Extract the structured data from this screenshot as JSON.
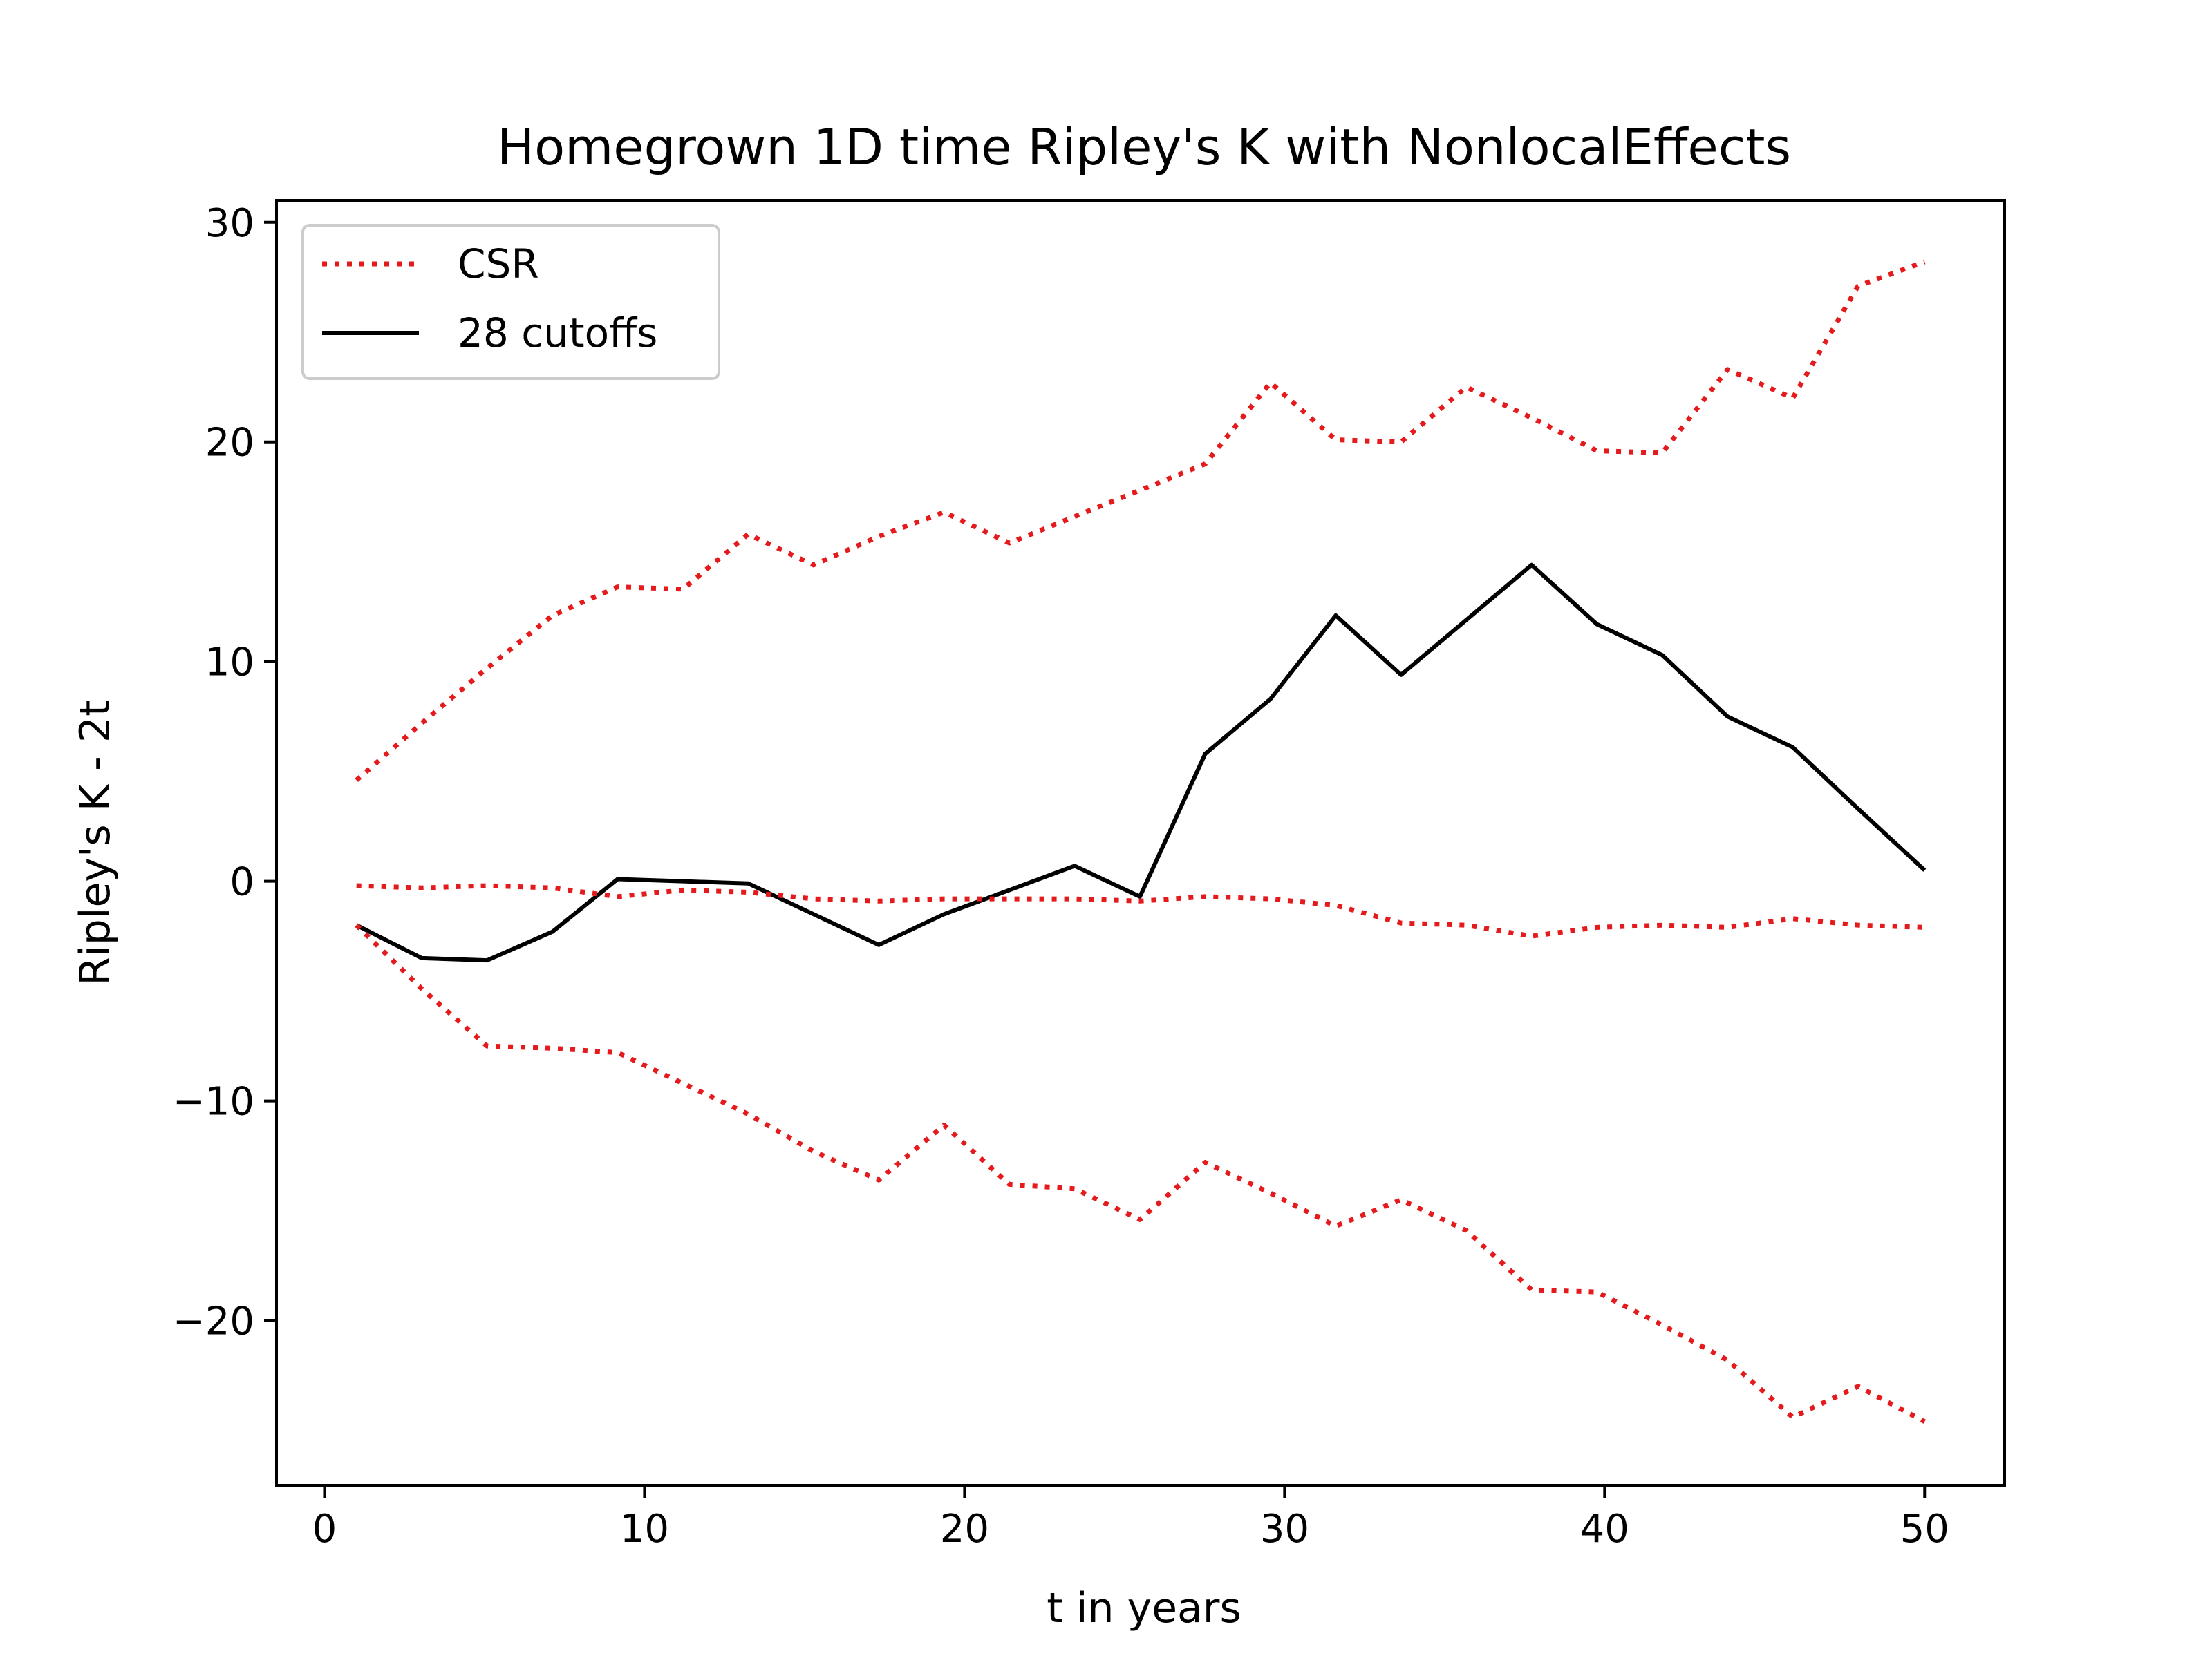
{
  "chart_data": {
    "type": "line",
    "title": "Homegrown 1D time Ripley's K with NonlocalEffects",
    "xlabel": "t in years",
    "ylabel": "Ripley's K - 2t",
    "xlim": [
      -1.5,
      52.5
    ],
    "ylim": [
      -27.5,
      31
    ],
    "xticks": [
      0,
      10,
      20,
      30,
      40,
      50
    ],
    "xtick_labels": [
      "0",
      "10",
      "20",
      "30",
      "40",
      "50"
    ],
    "yticks": [
      -20,
      -10,
      0,
      10,
      20,
      30
    ],
    "ytick_labels": [
      "−20",
      "−10",
      "0",
      "10",
      "20",
      "30"
    ],
    "grid": false,
    "legend_position": "upper-left",
    "legend": [
      {
        "label": "CSR",
        "style": "dotted",
        "color": "#e41a1c"
      },
      {
        "label": "28 cutoffs",
        "style": "solid",
        "color": "#000000"
      }
    ],
    "x": [
      1,
      3.04,
      5.08,
      7.12,
      9.16,
      11.2,
      13.24,
      15.28,
      17.32,
      19.36,
      21.4,
      23.44,
      25.48,
      27.52,
      29.56,
      31.6,
      33.64,
      35.68,
      37.72,
      39.76,
      41.8,
      43.84,
      45.88,
      47.92,
      50
    ],
    "series": [
      {
        "name": "28 cutoffs",
        "style": "solid",
        "color": "#000000",
        "values": [
          -2.0,
          -3.5,
          -3.6,
          -2.3,
          0.1,
          0.0,
          -0.1,
          -1.5,
          -2.9,
          -1.5,
          -0.4,
          0.7,
          -0.7,
          5.8,
          8.3,
          12.1,
          9.4,
          11.9,
          14.4,
          11.7,
          10.3,
          7.5,
          6.1,
          3.3,
          0.5
        ]
      },
      {
        "name": "CSR",
        "style": "dotted",
        "color": "#e41a1c",
        "values": [
          4.6,
          7.2,
          9.7,
          12.1,
          13.4,
          13.3,
          15.8,
          14.4,
          15.7,
          16.8,
          15.4,
          16.6,
          17.8,
          19.0,
          22.7,
          20.1,
          20.0,
          22.5,
          21.1,
          19.6,
          19.5,
          23.3,
          22.0,
          27.1,
          28.2
        ]
      },
      {
        "name": "CSR",
        "style": "dotted",
        "color": "#e41a1c",
        "values": [
          -0.2,
          -0.3,
          -0.2,
          -0.3,
          -0.7,
          -0.4,
          -0.5,
          -0.8,
          -0.9,
          -0.8,
          -0.8,
          -0.8,
          -0.9,
          -0.7,
          -0.8,
          -1.1,
          -1.9,
          -2.0,
          -2.5,
          -2.1,
          -2.0,
          -2.1,
          -1.7,
          -2.0,
          -2.1
        ]
      },
      {
        "name": "CSR",
        "style": "dotted",
        "color": "#e41a1c",
        "values": [
          -2.0,
          -4.9,
          -7.5,
          -7.6,
          -7.8,
          -9.2,
          -10.6,
          -12.3,
          -13.6,
          -11.1,
          -13.8,
          -14.0,
          -15.4,
          -12.8,
          -14.2,
          -15.7,
          -14.5,
          -15.9,
          -18.6,
          -18.7,
          -20.2,
          -21.8,
          -24.4,
          -23.0,
          -24.6
        ]
      }
    ]
  }
}
